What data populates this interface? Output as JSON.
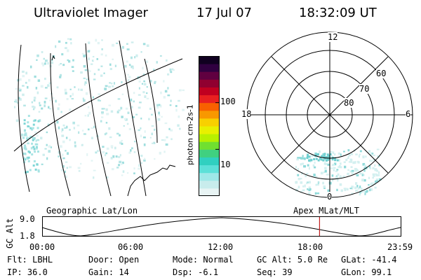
{
  "header": {
    "title": "Ultraviolet Imager",
    "date": "17 Jul 07",
    "time": "18:32:09 UT"
  },
  "colorbar": {
    "unit_label": "photon cm-2s-1",
    "ticks": [
      {
        "label": "100",
        "value": 100
      },
      {
        "label": "10",
        "value": 10
      }
    ],
    "colors": [
      "#e8f4f4",
      "#c8ecec",
      "#9ee8e8",
      "#5ce0d8",
      "#30d0c0",
      "#40d080",
      "#70e030",
      "#b8f000",
      "#e8f000",
      "#f8d000",
      "#f89800",
      "#f86000",
      "#e82020",
      "#c00020",
      "#900030",
      "#600040",
      "#300040",
      "#100020"
    ]
  },
  "polar_plot": {
    "mlt_labels": {
      "top": "12",
      "left": "18",
      "right": "6",
      "bottom": "0"
    },
    "lat_labels": [
      {
        "label": "60",
        "lat": 60
      },
      {
        "label": "70",
        "lat": 70
      },
      {
        "label": "80",
        "lat": 80
      }
    ]
  },
  "timeline": {
    "left_label": "Geographic Lat/Lon",
    "right_label": "Apex MLat/MLT",
    "y_axis_label": "GC Alt",
    "y_max": "9.0",
    "y_min": "1.8",
    "x_ticks": [
      "00:00",
      "06:00",
      "12:00",
      "18:00",
      "23:59"
    ],
    "current_time_fraction": 0.7723
  },
  "info": {
    "flt": {
      "label": "Flt:",
      "value": "LBHL"
    },
    "door": {
      "label": "Door:",
      "value": "Open"
    },
    "mode": {
      "label": "Mode:",
      "value": "Normal"
    },
    "gcalt": {
      "label": "GC Alt:",
      "value": "5.0 Re"
    },
    "glat": {
      "label": "GLat:",
      "value": "-41.4"
    },
    "ip": {
      "label": "IP:",
      "value": "36.0"
    },
    "gain": {
      "label": "Gain:",
      "value": "14"
    },
    "dsp": {
      "label": "Dsp:",
      "value": "-6.1"
    },
    "seq": {
      "label": "Seq:",
      "value": "39"
    },
    "glon": {
      "label": "GLon:",
      "value": "99.1"
    }
  }
}
